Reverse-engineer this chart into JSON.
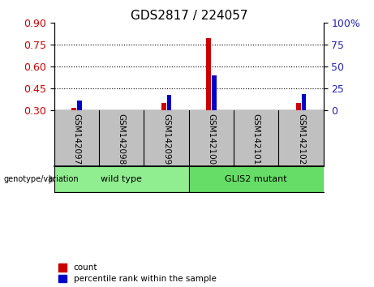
{
  "title": "GDS2817 / 224057",
  "samples": [
    "GSM142097",
    "GSM142098",
    "GSM142099",
    "GSM142100",
    "GSM142101",
    "GSM142102"
  ],
  "red_values": [
    0.321,
    0.3,
    0.352,
    0.795,
    0.3,
    0.352
  ],
  "blue_pct": [
    12,
    0,
    18,
    40,
    0,
    19
  ],
  "ylim_left": [
    0.3,
    0.9
  ],
  "ylim_right": [
    0,
    100
  ],
  "yticks_left": [
    0.3,
    0.45,
    0.6,
    0.75,
    0.9
  ],
  "yticks_right": [
    0,
    25,
    50,
    75,
    100
  ],
  "bar_width": 0.1,
  "red_color": "#CC0000",
  "blue_color": "#0000CC",
  "left_axis_color": "#CC0000",
  "right_axis_color": "#2222BB",
  "tick_area_color": "#C0C0C0",
  "wt_color": "#90EE90",
  "mut_color": "#66DD66",
  "legend_items": [
    "count",
    "percentile rank within the sample"
  ],
  "genotype_label": "genotype/variation",
  "grid_lines": [
    0.45,
    0.6,
    0.75
  ],
  "wt_label": "wild type",
  "mut_label": "GLIS2 mutant"
}
